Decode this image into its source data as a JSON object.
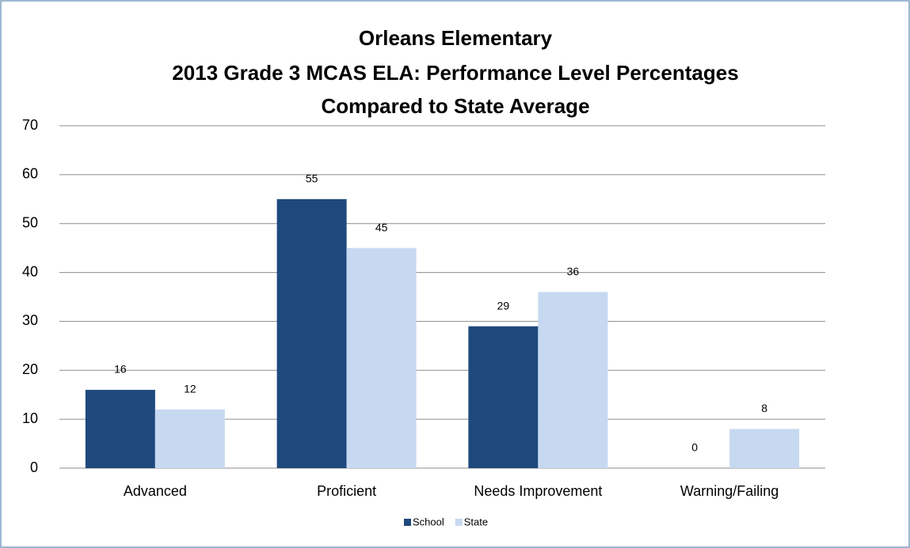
{
  "chart_data": {
    "type": "bar",
    "title": [
      "Orleans Elementary",
      "2013 Grade 3 MCAS ELA:  Performance Level Percentages",
      "Compared to State Average"
    ],
    "categories": [
      "Advanced",
      "Proficient",
      "Needs Improvement",
      "Warning/Failing"
    ],
    "series": [
      {
        "name": "School",
        "color": "#1f497d",
        "values": [
          16,
          55,
          29,
          0
        ]
      },
      {
        "name": "State",
        "color": "#c6d9f1",
        "values": [
          12,
          45,
          36,
          8
        ]
      }
    ],
    "ylim": [
      0,
      70
    ],
    "yticks": [
      0,
      10,
      20,
      30,
      40,
      50,
      60,
      70
    ],
    "grid": true,
    "legend": "bottom"
  }
}
